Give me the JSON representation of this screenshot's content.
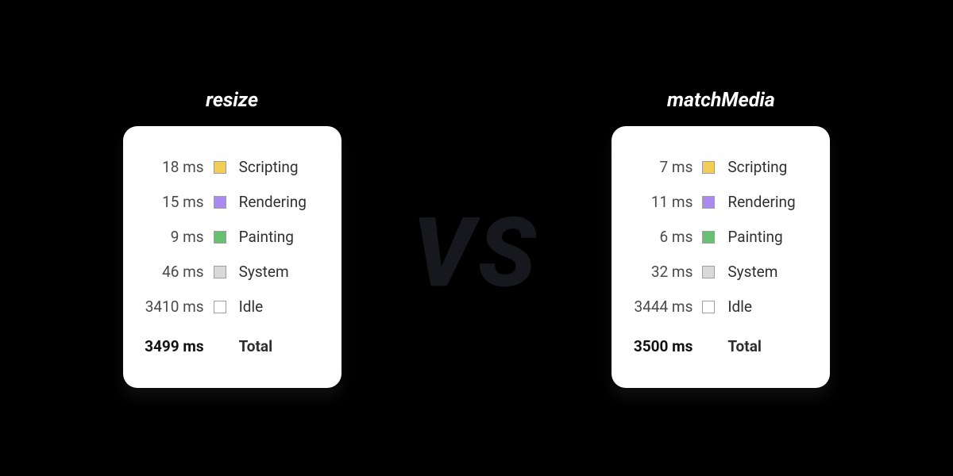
{
  "vs_label": "VS",
  "category_colors": {
    "Scripting": "#f2ce58",
    "Rendering": "#ab8af0",
    "Painting": "#68c172",
    "System": "#d9d9d9",
    "Idle": "#ffffff"
  },
  "swatch_border": "#9e9e9e",
  "card_bg": "#ffffff",
  "page_bg": "#000000",
  "title_fontsize": 25,
  "row_fontsize": 19,
  "vs_fontsize": 120,
  "left": {
    "title": "resize",
    "rows": [
      {
        "value": "18 ms",
        "label": "Scripting"
      },
      {
        "value": "15 ms",
        "label": "Rendering"
      },
      {
        "value": "9 ms",
        "label": "Painting"
      },
      {
        "value": "46 ms",
        "label": "System"
      },
      {
        "value": "3410 ms",
        "label": "Idle"
      }
    ],
    "total": {
      "value": "3499 ms",
      "label": "Total"
    }
  },
  "right": {
    "title": "matchMedia",
    "rows": [
      {
        "value": "7 ms",
        "label": "Scripting"
      },
      {
        "value": "11 ms",
        "label": "Rendering"
      },
      {
        "value": "6 ms",
        "label": "Painting"
      },
      {
        "value": "32 ms",
        "label": "System"
      },
      {
        "value": "3444 ms",
        "label": "Idle"
      }
    ],
    "total": {
      "value": "3500 ms",
      "label": "Total"
    }
  }
}
